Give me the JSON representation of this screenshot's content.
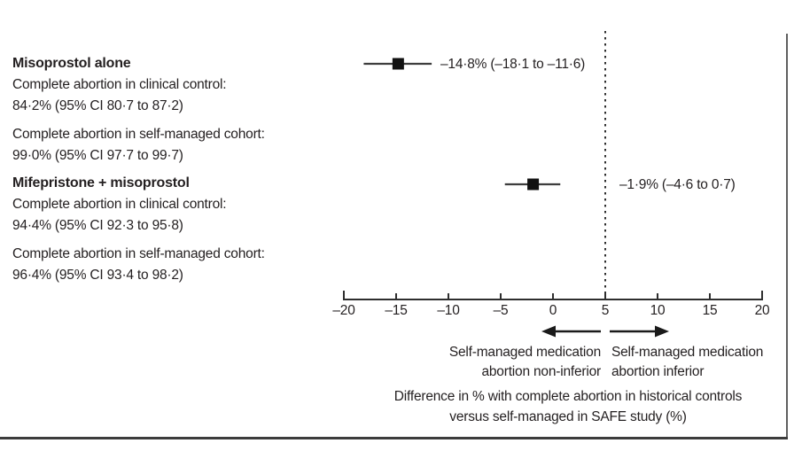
{
  "groups": [
    {
      "title": "Misoprostol alone",
      "line1": "Complete abortion in clinical control:",
      "line2": "84·2% (95% CI 80·7 to 87·2)",
      "line3": "Complete abortion in self-managed cohort:",
      "line4": "99·0% (95% CI 97·7 to 99·7)"
    },
    {
      "title": "Mifepristone + misoprostol",
      "line1": "Complete abortion in clinical control:",
      "line2": "94·4% (95% CI 92·3 to 95·8)",
      "line3": "Complete abortion in self-managed cohort:",
      "line4": "96·4% (95% CI 93·4 to 98·2)"
    }
  ],
  "chart_data": {
    "type": "scatter",
    "subtype": "forest-plot",
    "series": [
      {
        "name": "Misoprostol alone",
        "estimate": -14.8,
        "ci_low": -18.1,
        "ci_high": -11.6,
        "label": "–14·8% (–18·1 to –11·6)"
      },
      {
        "name": "Mifepristone + misoprostol",
        "estimate": -1.9,
        "ci_low": -4.6,
        "ci_high": 0.7,
        "label": "–1·9% (–4·6 to 0·7)"
      }
    ],
    "xlim": [
      -20,
      20
    ],
    "x_ticks": [
      -20,
      -15,
      -10,
      -5,
      0,
      5,
      10,
      15,
      20
    ],
    "x_tick_labels": [
      "–20",
      "–15",
      "–10",
      "–5",
      "0",
      "5",
      "10",
      "15",
      "20"
    ],
    "reference_line": 5,
    "reference_line_style": "dotted",
    "marker": "square",
    "grid": false,
    "xlabel": "Difference in % with complete abortion in historical controls versus self-managed in SAFE study (%)",
    "xlabel_line1": "Difference in % with complete abortion in historical controls",
    "xlabel_line2": "versus self-managed in SAFE study (%)",
    "arrow_left_label_line1": "Self-managed medication",
    "arrow_left_label_line2": "abortion non-inferior",
    "arrow_right_label_line1": "Self-managed medication",
    "arrow_right_label_line2": "abortion inferior"
  },
  "colors": {
    "text": "#231f20",
    "background": "#ffffff",
    "axis": "#2e2e2e",
    "ci_line": "#3d3d3d",
    "marker": "#111111",
    "frame": "#4a4a4a"
  }
}
